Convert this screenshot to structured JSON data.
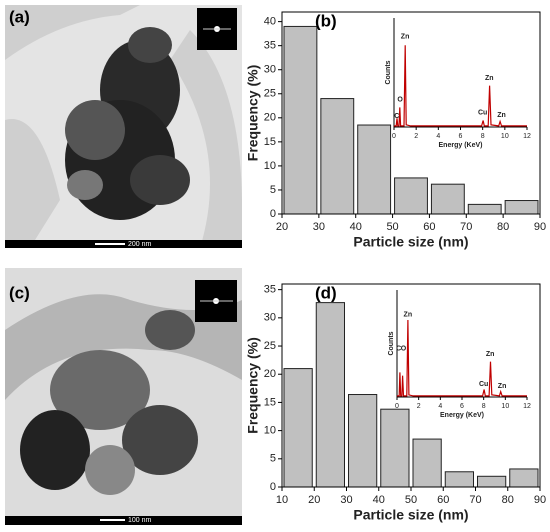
{
  "images": [
    {
      "label": "(a)",
      "scale_bar": "200 nm"
    },
    {
      "label": "(c)",
      "scale_bar": "100 nm"
    }
  ],
  "chart_data": [
    {
      "type": "histogram",
      "panel_label": "(b)",
      "xlabel": "Particle size (nm)",
      "ylabel": "Frequency (%)",
      "color": "#c0c0c0",
      "bins": [
        20,
        30,
        40,
        50,
        60,
        70,
        80,
        90
      ],
      "values": [
        39,
        24,
        18.5,
        7.5,
        6.2,
        2,
        2.8
      ],
      "xlim": [
        20,
        90
      ],
      "xticks": [
        20,
        30,
        40,
        50,
        60,
        70,
        80,
        90
      ],
      "ylim": [
        0,
        42
      ],
      "yticks": [
        0,
        5,
        10,
        15,
        20,
        25,
        30,
        35,
        40
      ],
      "inset": {
        "type": "line",
        "color": "#c00000",
        "xlabel": "Energy (KeV)",
        "ylabel": "Counts",
        "xlim": [
          0,
          12
        ],
        "xticks": [
          0,
          2,
          4,
          6,
          8,
          10,
          12
        ],
        "ylim": [
          0,
          100
        ],
        "x": [
          0,
          0.2,
          0.27,
          0.34,
          0.45,
          0.52,
          0.6,
          0.9,
          1.01,
          1.1,
          1.5,
          7.9,
          8.04,
          8.15,
          8.5,
          8.63,
          8.75,
          9.45,
          9.57,
          9.7,
          12
        ],
        "values": [
          1,
          1,
          8,
          1,
          1,
          18,
          1,
          1,
          75,
          2,
          1,
          1,
          6,
          1,
          1,
          38,
          2,
          1,
          5,
          1,
          1
        ],
        "annotations": [
          {
            "text": "Zn",
            "x": 1.0,
            "y": 83
          },
          {
            "text": "O",
            "x": 0.55,
            "y": 25
          },
          {
            "text": "C",
            "x": 0.25,
            "y": 10
          },
          {
            "text": "Cu",
            "x": 8.0,
            "y": 13
          },
          {
            "text": "Zn",
            "x": 8.6,
            "y": 45
          },
          {
            "text": "Zn",
            "x": 9.7,
            "y": 11
          }
        ]
      }
    },
    {
      "type": "histogram",
      "panel_label": "(d)",
      "xlabel": "Particle size (nm)",
      "ylabel": "Frequency (%)",
      "color": "#c0c0c0",
      "bins": [
        10,
        20,
        30,
        40,
        50,
        60,
        70,
        80,
        90
      ],
      "values": [
        21,
        32.7,
        16.4,
        13.8,
        8.5,
        2.7,
        1.9,
        3.2
      ],
      "xlim": [
        10,
        90
      ],
      "xticks": [
        10,
        20,
        30,
        40,
        50,
        60,
        70,
        80,
        90
      ],
      "ylim": [
        0,
        36
      ],
      "yticks": [
        0,
        5,
        10,
        15,
        20,
        25,
        30,
        35
      ],
      "inset": {
        "type": "line",
        "color": "#c00000",
        "xlabel": "Energy (KeV)",
        "ylabel": "Counts",
        "xlim": [
          0,
          12
        ],
        "xticks": [
          0,
          2,
          4,
          6,
          8,
          10,
          12
        ],
        "ylim": [
          0,
          100
        ],
        "x": [
          0,
          0.2,
          0.27,
          0.34,
          0.45,
          0.52,
          0.6,
          0.9,
          1.01,
          1.1,
          1.5,
          7.9,
          8.04,
          8.15,
          8.5,
          8.63,
          8.75,
          9.45,
          9.57,
          9.7,
          12
        ],
        "values": [
          1,
          1,
          23,
          1,
          1,
          20,
          1,
          1,
          72,
          2,
          1,
          1,
          7,
          1,
          1,
          33,
          2,
          1,
          5,
          1,
          1
        ],
        "annotations": [
          {
            "text": "Zn",
            "x": 1.0,
            "y": 77
          },
          {
            "text": "C",
            "x": 0.15,
            "y": 45
          },
          {
            "text": "O",
            "x": 0.6,
            "y": 45
          },
          {
            "text": "Cu",
            "x": 8.0,
            "y": 12
          },
          {
            "text": "Zn",
            "x": 8.6,
            "y": 40
          },
          {
            "text": "Zn",
            "x": 9.7,
            "y": 10
          }
        ]
      }
    }
  ]
}
